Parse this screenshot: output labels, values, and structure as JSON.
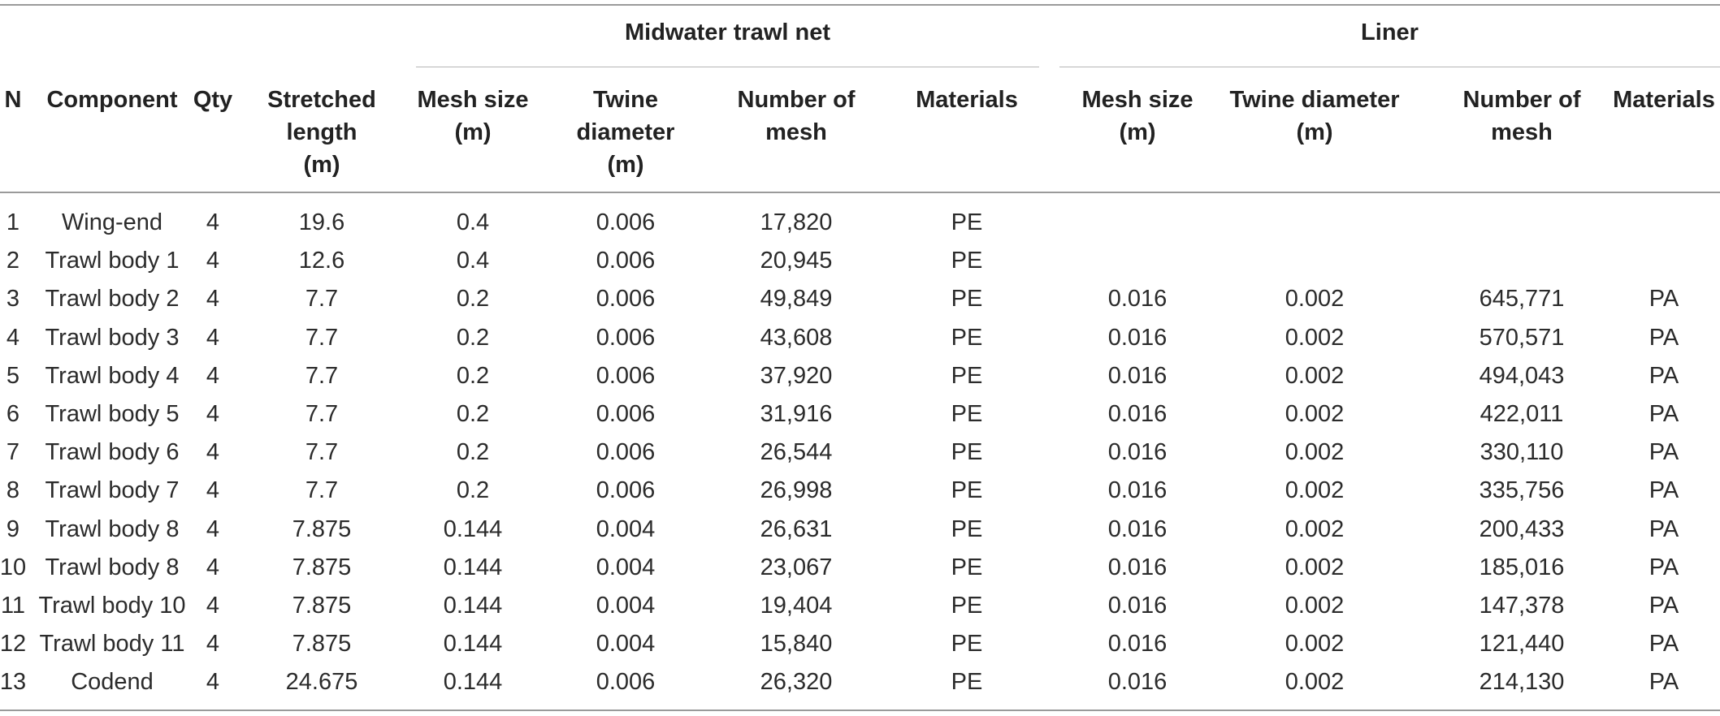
{
  "group_headers": {
    "midwater": "Midwater trawl net",
    "liner": "Liner"
  },
  "columns": [
    "N",
    "Component",
    "Qty",
    "Stretched\nlength\n(m)",
    "Mesh size\n(m)",
    "Twine\ndiameter\n(m)",
    "Number of\nmesh",
    "Materials",
    "Mesh size\n(m)",
    "Twine diameter\n(m)",
    "Number of\nmesh",
    "Materials"
  ],
  "rows": [
    [
      "1",
      "Wing-end",
      "4",
      "19.6",
      "0.4",
      "0.006",
      "17,820",
      "PE",
      "",
      "",
      "",
      ""
    ],
    [
      "2",
      "Trawl body 1",
      "4",
      "12.6",
      "0.4",
      "0.006",
      "20,945",
      "PE",
      "",
      "",
      "",
      ""
    ],
    [
      "3",
      "Trawl body 2",
      "4",
      "7.7",
      "0.2",
      "0.006",
      "49,849",
      "PE",
      "0.016",
      "0.002",
      "645,771",
      "PA"
    ],
    [
      "4",
      "Trawl body 3",
      "4",
      "7.7",
      "0.2",
      "0.006",
      "43,608",
      "PE",
      "0.016",
      "0.002",
      "570,571",
      "PA"
    ],
    [
      "5",
      "Trawl body 4",
      "4",
      "7.7",
      "0.2",
      "0.006",
      "37,920",
      "PE",
      "0.016",
      "0.002",
      "494,043",
      "PA"
    ],
    [
      "6",
      "Trawl body 5",
      "4",
      "7.7",
      "0.2",
      "0.006",
      "31,916",
      "PE",
      "0.016",
      "0.002",
      "422,011",
      "PA"
    ],
    [
      "7",
      "Trawl body 6",
      "4",
      "7.7",
      "0.2",
      "0.006",
      "26,544",
      "PE",
      "0.016",
      "0.002",
      "330,110",
      "PA"
    ],
    [
      "8",
      "Trawl body 7",
      "4",
      "7.7",
      "0.2",
      "0.006",
      "26,998",
      "PE",
      "0.016",
      "0.002",
      "335,756",
      "PA"
    ],
    [
      "9",
      "Trawl body 8",
      "4",
      "7.875",
      "0.144",
      "0.004",
      "26,631",
      "PE",
      "0.016",
      "0.002",
      "200,433",
      "PA"
    ],
    [
      "10",
      "Trawl body 8",
      "4",
      "7.875",
      "0.144",
      "0.004",
      "23,067",
      "PE",
      "0.016",
      "0.002",
      "185,016",
      "PA"
    ],
    [
      "11",
      "Trawl body 10",
      "4",
      "7.875",
      "0.144",
      "0.004",
      "19,404",
      "PE",
      "0.016",
      "0.002",
      "147,378",
      "PA"
    ],
    [
      "12",
      "Trawl body 11",
      "4",
      "7.875",
      "0.144",
      "0.004",
      "15,840",
      "PE",
      "0.016",
      "0.002",
      "121,440",
      "PA"
    ],
    [
      "13",
      "Codend",
      "4",
      "24.675",
      "0.144",
      "0.006",
      "26,320",
      "PE",
      "0.016",
      "0.002",
      "214,130",
      "PA"
    ]
  ]
}
